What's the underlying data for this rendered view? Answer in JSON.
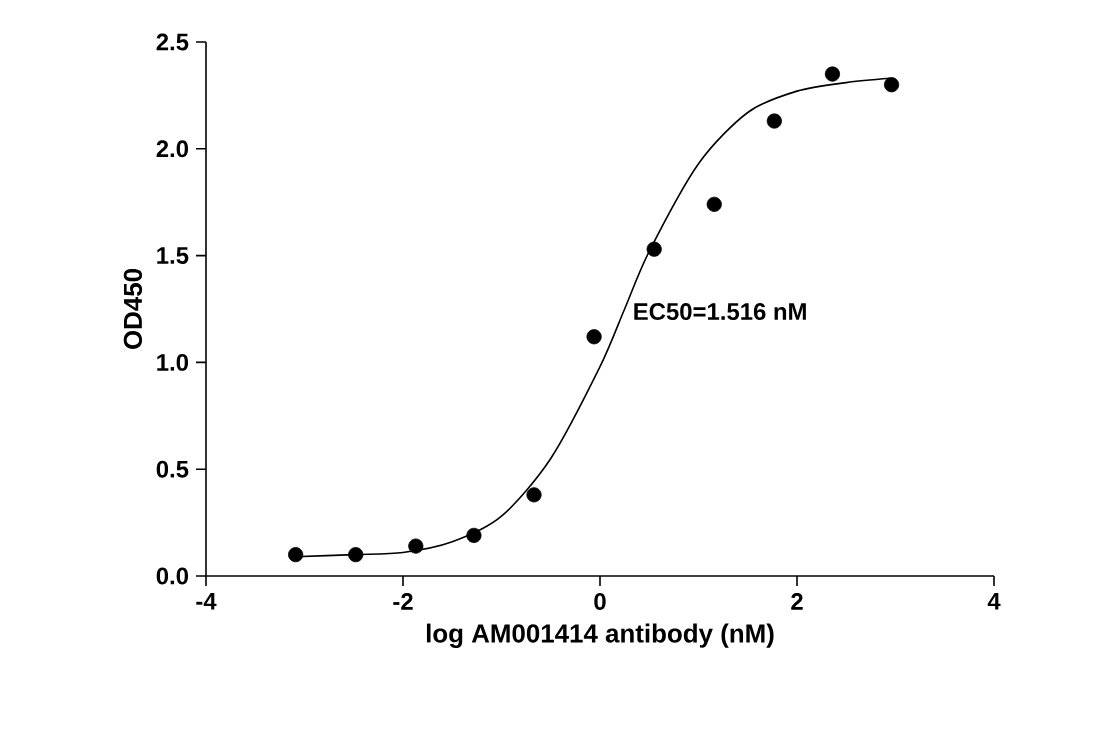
{
  "chart_data": {
    "type": "scatter",
    "xlabel": "log AM001414 antibody (nM)",
    "ylabel": "OD450",
    "xlim": [
      -4,
      4
    ],
    "xticks": [
      -4,
      -2,
      0,
      2,
      4
    ],
    "ylim": [
      0,
      2.5
    ],
    "yticks": [
      {
        "value": 0,
        "label": "0.0"
      },
      0.5,
      {
        "value": 1,
        "label": "1.0"
      },
      1.5,
      {
        "value": 2,
        "label": "2.0"
      },
      2.5
    ],
    "annotations": [
      {
        "text": "EC50=1.516 nM",
        "x": 0.18,
        "y": 1.21
      }
    ],
    "series": [
      {
        "color": "#000000",
        "marker": "circle",
        "x": [
          -3.09,
          -2.48,
          -1.87,
          -1.28,
          -0.67,
          -0.06,
          0.55,
          1.16,
          1.77,
          2.36,
          2.96
        ],
        "values": [
          0.1,
          0.1,
          0.14,
          0.19,
          0.38,
          1.12,
          1.53,
          1.74,
          2.13,
          2.35,
          2.3
        ]
      },
      {
        "type": "line",
        "color": "#000000",
        "marker": "none",
        "line_style": "solid",
        "x": [
          -3.1,
          -2.5,
          -2,
          -1.5,
          -1,
          -0.5,
          0,
          0.25,
          0.5,
          1,
          1.5,
          2,
          2.5,
          2.95
        ],
        "values": [
          0.09,
          0.1,
          0.11,
          0.16,
          0.28,
          0.55,
          0.98,
          1.25,
          1.52,
          1.93,
          2.17,
          2.27,
          2.31,
          2.33
        ]
      }
    ]
  }
}
